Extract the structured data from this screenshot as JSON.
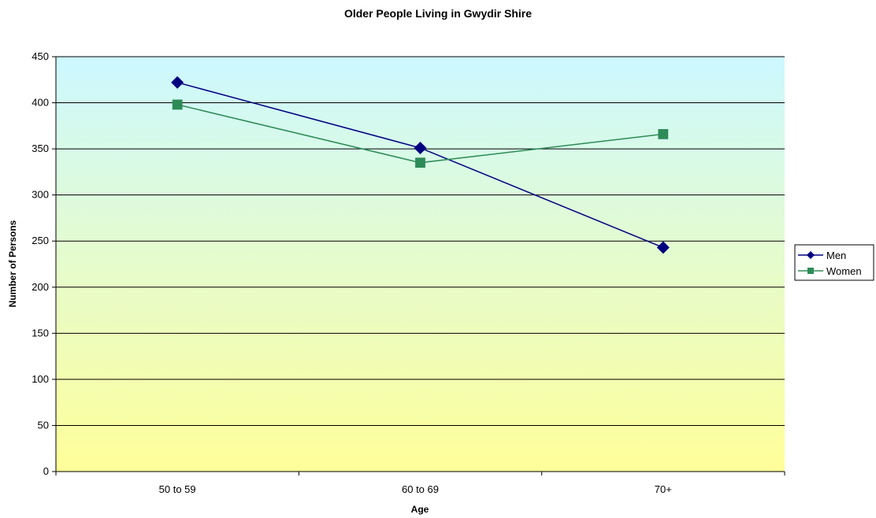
{
  "chart_data": {
    "type": "line",
    "title": "Older People Living in Gwydir Shire",
    "xlabel": "Age",
    "ylabel": "Number of Persons",
    "categories": [
      "50 to 59",
      "60 to 69",
      "70+"
    ],
    "ylim": [
      0,
      450
    ],
    "yticks": [
      0,
      50,
      100,
      150,
      200,
      250,
      300,
      350,
      400,
      450
    ],
    "grid": true,
    "legend_position": "right",
    "series": [
      {
        "name": "Men",
        "values": [
          422,
          351,
          243
        ],
        "color": "#000080",
        "marker": "diamond"
      },
      {
        "name": "Women",
        "values": [
          398,
          335,
          366
        ],
        "color": "#2e8b57",
        "marker": "square"
      }
    ],
    "background_gradient": [
      "#ccf8ff",
      "#ffff99"
    ]
  }
}
